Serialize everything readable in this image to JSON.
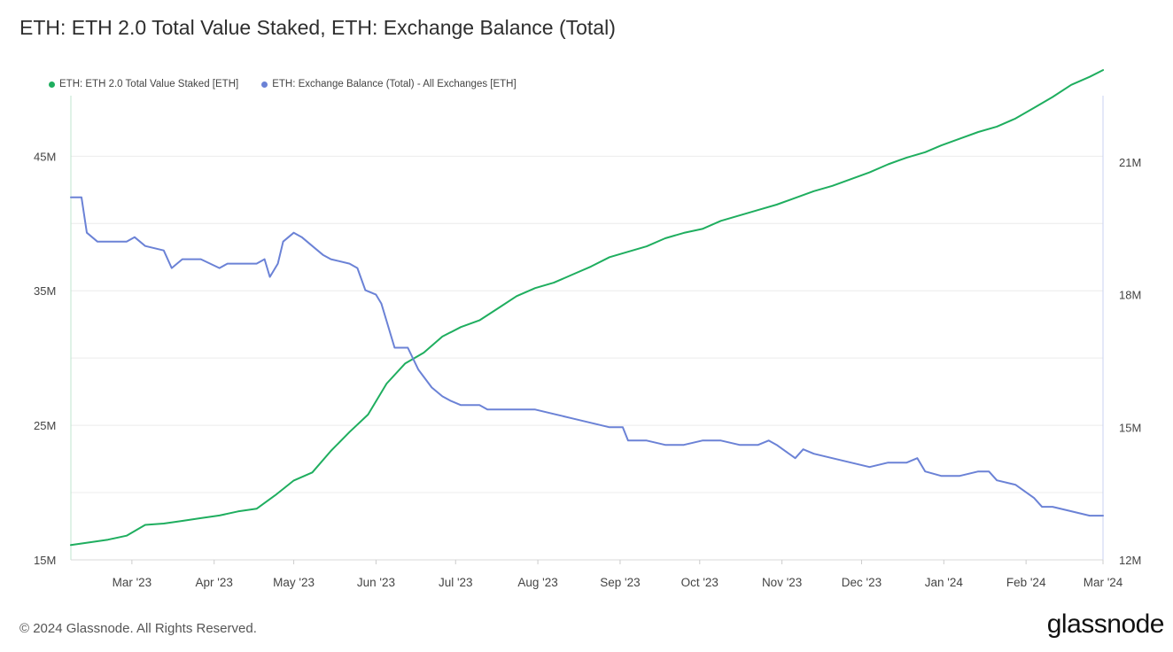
{
  "title": "ETH: ETH 2.0 Total Value Staked, ETH: Exchange Balance (Total)",
  "footer": "© 2024 Glassnode. All Rights Reserved.",
  "brand": "glassnode",
  "chart_data": {
    "type": "line",
    "title": "ETH: ETH 2.0 Total Value Staked, ETH: Exchange Balance (Total)",
    "legend_position": "top-left",
    "grid": true,
    "x_ticks": [
      "Mar '23",
      "Apr '23",
      "May '23",
      "Jun '23",
      "Jul '23",
      "Aug '23",
      "Sep '23",
      "Oct '23",
      "Nov '23",
      "Dec '23",
      "Jan '24",
      "Feb '24",
      "Mar '24"
    ],
    "x_tick_dates": [
      "2023-03-01",
      "2023-04-01",
      "2023-05-01",
      "2023-06-01",
      "2023-07-01",
      "2023-08-01",
      "2023-09-01",
      "2023-10-01",
      "2023-11-01",
      "2023-12-01",
      "2024-01-01",
      "2024-02-01",
      "2024-03-01"
    ],
    "xlim": [
      "2023-02-06",
      "2024-03-01"
    ],
    "y_left": {
      "ticks": [
        "15M",
        "25M",
        "35M",
        "45M"
      ],
      "tick_values": [
        15,
        25,
        35,
        45
      ],
      "lim": [
        15,
        49.5
      ],
      "unit": "M"
    },
    "y_right": {
      "ticks": [
        "12M",
        "15M",
        "18M",
        "21M"
      ],
      "tick_values": [
        12,
        15,
        18,
        21
      ],
      "lim": [
        12,
        22.5
      ],
      "unit": "M"
    },
    "series": [
      {
        "name": "ETH: ETH 2.0 Total Value Staked [ETH]",
        "color": "#1fae5f",
        "axis": "left",
        "points": [
          [
            "2023-02-06",
            16.1
          ],
          [
            "2023-02-13",
            16.3
          ],
          [
            "2023-02-20",
            16.5
          ],
          [
            "2023-02-27",
            16.8
          ],
          [
            "2023-03-06",
            17.6
          ],
          [
            "2023-03-13",
            17.7
          ],
          [
            "2023-03-20",
            17.9
          ],
          [
            "2023-03-27",
            18.1
          ],
          [
            "2023-04-03",
            18.3
          ],
          [
            "2023-04-10",
            18.6
          ],
          [
            "2023-04-17",
            18.8
          ],
          [
            "2023-04-24",
            19.8
          ],
          [
            "2023-05-01",
            20.9
          ],
          [
            "2023-05-08",
            21.5
          ],
          [
            "2023-05-15",
            23.1
          ],
          [
            "2023-05-22",
            24.5
          ],
          [
            "2023-05-29",
            25.8
          ],
          [
            "2023-06-05",
            28.1
          ],
          [
            "2023-06-12",
            29.6
          ],
          [
            "2023-06-19",
            30.4
          ],
          [
            "2023-06-26",
            31.6
          ],
          [
            "2023-07-03",
            32.3
          ],
          [
            "2023-07-10",
            32.8
          ],
          [
            "2023-07-17",
            33.7
          ],
          [
            "2023-07-24",
            34.6
          ],
          [
            "2023-07-31",
            35.2
          ],
          [
            "2023-08-07",
            35.6
          ],
          [
            "2023-08-14",
            36.2
          ],
          [
            "2023-08-21",
            36.8
          ],
          [
            "2023-08-28",
            37.5
          ],
          [
            "2023-09-04",
            37.9
          ],
          [
            "2023-09-11",
            38.3
          ],
          [
            "2023-09-18",
            38.9
          ],
          [
            "2023-09-25",
            39.3
          ],
          [
            "2023-10-02",
            39.6
          ],
          [
            "2023-10-09",
            40.2
          ],
          [
            "2023-10-16",
            40.6
          ],
          [
            "2023-10-23",
            41.0
          ],
          [
            "2023-10-30",
            41.4
          ],
          [
            "2023-11-06",
            41.9
          ],
          [
            "2023-11-13",
            42.4
          ],
          [
            "2023-11-20",
            42.8
          ],
          [
            "2023-11-27",
            43.3
          ],
          [
            "2023-12-04",
            43.8
          ],
          [
            "2023-12-11",
            44.4
          ],
          [
            "2023-12-18",
            44.9
          ],
          [
            "2023-12-25",
            45.3
          ],
          [
            "2023-12-31",
            45.8
          ],
          [
            "2024-01-07",
            46.3
          ],
          [
            "2024-01-14",
            46.8
          ],
          [
            "2024-01-21",
            47.2
          ],
          [
            "2024-01-28",
            47.8
          ],
          [
            "2024-02-04",
            48.6
          ],
          [
            "2024-02-11",
            49.4
          ],
          [
            "2024-02-18",
            50.3
          ],
          [
            "2024-02-25",
            50.9
          ],
          [
            "2024-03-01",
            51.4
          ]
        ]
      },
      {
        "name": "ETH: Exchange Balance (Total) - All Exchanges [ETH]",
        "color": "#6b82d6",
        "axis": "right",
        "points": [
          [
            "2023-02-06",
            20.2
          ],
          [
            "2023-02-10",
            20.2
          ],
          [
            "2023-02-12",
            19.4
          ],
          [
            "2023-02-16",
            19.2
          ],
          [
            "2023-02-20",
            19.2
          ],
          [
            "2023-02-27",
            19.2
          ],
          [
            "2023-03-02",
            19.3
          ],
          [
            "2023-03-06",
            19.1
          ],
          [
            "2023-03-13",
            19.0
          ],
          [
            "2023-03-16",
            18.6
          ],
          [
            "2023-03-20",
            18.8
          ],
          [
            "2023-03-27",
            18.8
          ],
          [
            "2023-04-03",
            18.6
          ],
          [
            "2023-04-06",
            18.7
          ],
          [
            "2023-04-10",
            18.7
          ],
          [
            "2023-04-17",
            18.7
          ],
          [
            "2023-04-20",
            18.8
          ],
          [
            "2023-04-22",
            18.4
          ],
          [
            "2023-04-25",
            18.7
          ],
          [
            "2023-04-27",
            19.2
          ],
          [
            "2023-05-01",
            19.4
          ],
          [
            "2023-05-04",
            19.3
          ],
          [
            "2023-05-08",
            19.1
          ],
          [
            "2023-05-12",
            18.9
          ],
          [
            "2023-05-15",
            18.8
          ],
          [
            "2023-05-22",
            18.7
          ],
          [
            "2023-05-25",
            18.6
          ],
          [
            "2023-05-28",
            18.1
          ],
          [
            "2023-06-01",
            18.0
          ],
          [
            "2023-06-03",
            17.8
          ],
          [
            "2023-06-05",
            17.4
          ],
          [
            "2023-06-08",
            16.8
          ],
          [
            "2023-06-11",
            16.8
          ],
          [
            "2023-06-13",
            16.8
          ],
          [
            "2023-06-17",
            16.3
          ],
          [
            "2023-06-22",
            15.9
          ],
          [
            "2023-06-26",
            15.7
          ],
          [
            "2023-06-29",
            15.6
          ],
          [
            "2023-07-03",
            15.5
          ],
          [
            "2023-07-10",
            15.5
          ],
          [
            "2023-07-13",
            15.4
          ],
          [
            "2023-07-17",
            15.4
          ],
          [
            "2023-07-24",
            15.4
          ],
          [
            "2023-07-31",
            15.4
          ],
          [
            "2023-08-07",
            15.3
          ],
          [
            "2023-08-14",
            15.2
          ],
          [
            "2023-08-21",
            15.1
          ],
          [
            "2023-08-28",
            15.0
          ],
          [
            "2023-09-02",
            15.0
          ],
          [
            "2023-09-04",
            14.7
          ],
          [
            "2023-09-11",
            14.7
          ],
          [
            "2023-09-18",
            14.6
          ],
          [
            "2023-09-25",
            14.6
          ],
          [
            "2023-10-02",
            14.7
          ],
          [
            "2023-10-09",
            14.7
          ],
          [
            "2023-10-16",
            14.6
          ],
          [
            "2023-10-23",
            14.6
          ],
          [
            "2023-10-27",
            14.7
          ],
          [
            "2023-10-30",
            14.6
          ],
          [
            "2023-11-06",
            14.3
          ],
          [
            "2023-11-09",
            14.5
          ],
          [
            "2023-11-13",
            14.4
          ],
          [
            "2023-11-20",
            14.3
          ],
          [
            "2023-11-27",
            14.2
          ],
          [
            "2023-12-04",
            14.1
          ],
          [
            "2023-12-11",
            14.2
          ],
          [
            "2023-12-18",
            14.2
          ],
          [
            "2023-12-22",
            14.3
          ],
          [
            "2023-12-25",
            14.0
          ],
          [
            "2023-12-31",
            13.9
          ],
          [
            "2024-01-07",
            13.9
          ],
          [
            "2024-01-14",
            14.0
          ],
          [
            "2024-01-18",
            14.0
          ],
          [
            "2024-01-21",
            13.8
          ],
          [
            "2024-01-28",
            13.7
          ],
          [
            "2024-02-04",
            13.4
          ],
          [
            "2024-02-07",
            13.2
          ],
          [
            "2024-02-11",
            13.2
          ],
          [
            "2024-02-18",
            13.1
          ],
          [
            "2024-02-25",
            13.0
          ],
          [
            "2024-03-01",
            13.0
          ]
        ]
      }
    ]
  }
}
